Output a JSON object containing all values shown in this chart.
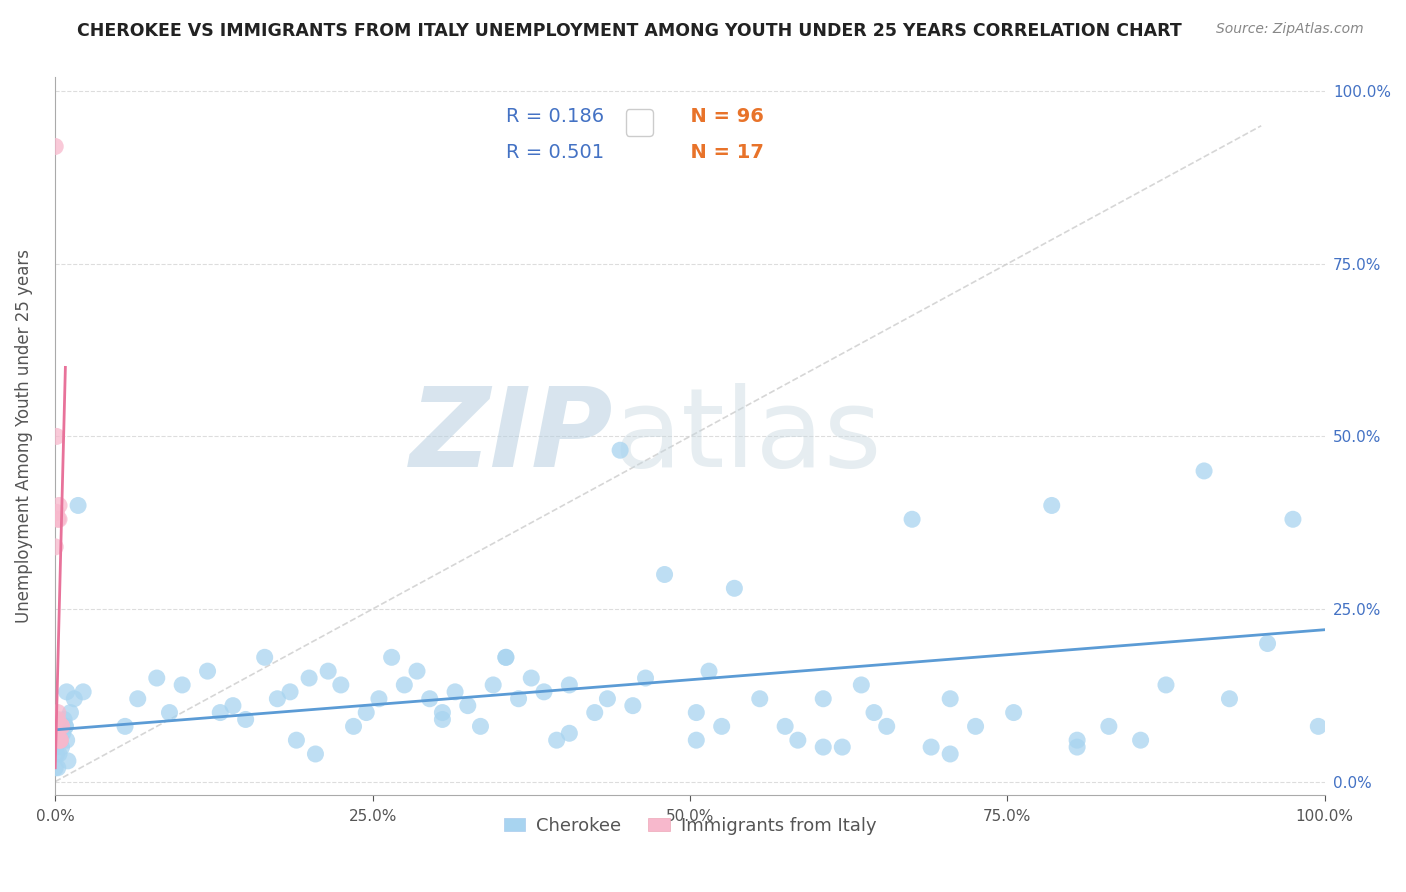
{
  "title": "CHEROKEE VS IMMIGRANTS FROM ITALY UNEMPLOYMENT AMONG YOUTH UNDER 25 YEARS CORRELATION CHART",
  "source": "Source: ZipAtlas.com",
  "ylabel": "Unemployment Among Youth under 25 years",
  "xlim": [
    0,
    1
  ],
  "ylim": [
    0,
    1
  ],
  "xtick_vals": [
    0,
    0.25,
    0.5,
    0.75,
    1.0
  ],
  "xtick_labels": [
    "0.0%",
    "25.0%",
    "50.0%",
    "75.0%",
    "100.0%"
  ],
  "ytick_vals": [
    0,
    0.25,
    0.5,
    0.75,
    1.0
  ],
  "ytick_labels_right": [
    "0.0%",
    "25.0%",
    "50.0%",
    "75.0%",
    "100.0%"
  ],
  "legend1_label_r": "R = 0.186",
  "legend1_label_n": "N = 96",
  "legend2_label_r": "R = 0.501",
  "legend2_label_n": "N = 17",
  "legend1_color": "#a8d4f0",
  "legend2_color": "#f7b8cc",
  "line1_color": "#5b9bd5",
  "line2_color": "#e8729a",
  "scatter1_color": "#a8d4f0",
  "scatter2_color": "#f7b8cc",
  "diag_line_color": "#cccccc",
  "watermark_zip_color": "#b8cfe0",
  "watermark_atlas_color": "#c8d8e0",
  "background_color": "#ffffff",
  "grid_color": "#dddddd",
  "title_color": "#222222",
  "axis_label_color": "#555555",
  "right_tick_color": "#4472c4",
  "bottom_legend_color": "#555555",
  "legend_r_color": "#4472c4",
  "legend_n_color": "#e8732a",
  "blue_x": [
    0.005,
    0.008,
    0.003,
    0.01,
    0.0,
    0.002,
    0.006,
    0.001,
    0.004,
    0.0,
    0.007,
    0.009,
    0.0,
    0.001,
    0.012,
    0.008,
    0.018,
    0.009,
    0.015,
    0.004,
    0.022,
    0.055,
    0.065,
    0.08,
    0.09,
    0.1,
    0.12,
    0.13,
    0.14,
    0.15,
    0.165,
    0.175,
    0.185,
    0.19,
    0.2,
    0.215,
    0.225,
    0.235,
    0.245,
    0.255,
    0.265,
    0.275,
    0.285,
    0.295,
    0.305,
    0.315,
    0.325,
    0.335,
    0.345,
    0.355,
    0.365,
    0.375,
    0.385,
    0.395,
    0.405,
    0.425,
    0.435,
    0.445,
    0.455,
    0.465,
    0.48,
    0.505,
    0.515,
    0.525,
    0.535,
    0.555,
    0.575,
    0.585,
    0.605,
    0.62,
    0.635,
    0.645,
    0.655,
    0.675,
    0.69,
    0.705,
    0.725,
    0.755,
    0.785,
    0.805,
    0.83,
    0.855,
    0.875,
    0.905,
    0.925,
    0.955,
    0.975,
    0.995,
    0.305,
    0.605,
    0.405,
    0.205,
    0.505,
    0.705,
    0.805,
    0.355
  ],
  "blue_y": [
    0.05,
    0.08,
    0.04,
    0.03,
    0.06,
    0.02,
    0.07,
    0.04,
    0.06,
    0.02,
    0.09,
    0.06,
    0.05,
    0.07,
    0.1,
    0.08,
    0.4,
    0.13,
    0.12,
    0.06,
    0.13,
    0.08,
    0.12,
    0.15,
    0.1,
    0.14,
    0.16,
    0.1,
    0.11,
    0.09,
    0.18,
    0.12,
    0.13,
    0.06,
    0.15,
    0.16,
    0.14,
    0.08,
    0.1,
    0.12,
    0.18,
    0.14,
    0.16,
    0.12,
    0.09,
    0.13,
    0.11,
    0.08,
    0.14,
    0.18,
    0.12,
    0.15,
    0.13,
    0.06,
    0.14,
    0.1,
    0.12,
    0.48,
    0.11,
    0.15,
    0.3,
    0.1,
    0.16,
    0.08,
    0.28,
    0.12,
    0.08,
    0.06,
    0.12,
    0.05,
    0.14,
    0.1,
    0.08,
    0.38,
    0.05,
    0.12,
    0.08,
    0.1,
    0.4,
    0.05,
    0.08,
    0.06,
    0.14,
    0.45,
    0.12,
    0.2,
    0.38,
    0.08,
    0.1,
    0.05,
    0.07,
    0.04,
    0.06,
    0.04,
    0.06,
    0.18
  ],
  "pink_x": [
    0.0,
    0.001,
    0.002,
    0.0,
    0.003,
    0.004,
    0.005,
    0.001,
    0.0,
    0.002,
    0.003,
    0.001,
    0.004,
    0.005,
    0.002,
    0.003,
    0.001
  ],
  "pink_y": [
    0.92,
    0.5,
    0.38,
    0.34,
    0.38,
    0.06,
    0.08,
    0.07,
    0.09,
    0.1,
    0.4,
    0.39,
    0.06,
    0.08,
    0.09,
    0.06,
    0.07
  ],
  "blue_line_x": [
    0.0,
    1.0
  ],
  "blue_line_y": [
    0.075,
    0.22
  ],
  "pink_line_x": [
    0.0,
    0.008
  ],
  "pink_line_y": [
    0.02,
    0.6
  ],
  "diag_line_x": [
    0.0,
    0.95
  ],
  "diag_line_y": [
    0.0,
    0.95
  ]
}
